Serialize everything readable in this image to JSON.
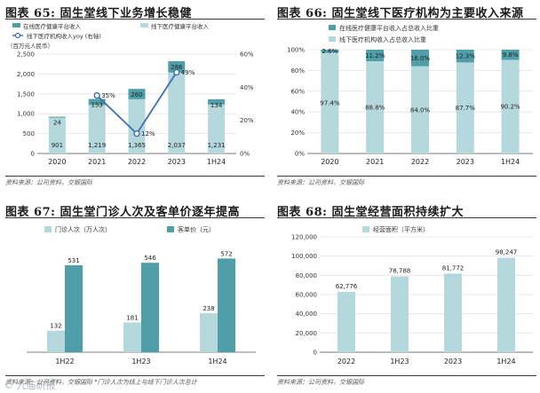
{
  "colors": {
    "light": "#b5d8dc",
    "dark": "#4f9ea8",
    "line": "#3d6fb6",
    "grid": "#e4e4e4",
    "axis": "#555555"
  },
  "watermark": "© 九庙研报",
  "panels": [
    {
      "title": "图表 65: 固生堂线下业务增长稳健",
      "source": "资料来源：公司资料，交银国际",
      "chart_data": {
        "type": "bar",
        "stacked": true,
        "categories": [
          "2020",
          "2021",
          "2022",
          "2023",
          "1H24"
        ],
        "unit_note": "（百万元人民币）",
        "series": [
          {
            "name": "在线医疗健康平台收入",
            "values": [
              24,
              153,
              260,
              286,
              134
            ]
          },
          {
            "name": "线下医疗健康平台收入",
            "values": [
              901,
              1219,
              1365,
              2037,
              1231
            ]
          }
        ],
        "line_series": {
          "name": "线下医疗机构收入yoy (右轴)",
          "values": [
            null,
            35,
            12,
            49,
            null
          ],
          "labels": [
            "",
            "35%",
            "12%",
            "49%",
            ""
          ]
        },
        "ylim": [
          0,
          2500
        ],
        "yticks": [
          "0",
          "500",
          "1,000",
          "1,500",
          "2,000",
          "2,500"
        ],
        "y2ticks": [
          "0%",
          "20%",
          "40%",
          "60%"
        ],
        "bottom_labels": [
          "901",
          "1,219",
          "1,365",
          "2,037",
          "1,231"
        ],
        "top_labels": [
          "24",
          "153",
          "260",
          "286",
          "134"
        ],
        "legend_position": "top-left"
      }
    },
    {
      "title": "图表 66: 固生堂线下医疗机构为主要收入来源",
      "source": "资料来源：公司资料，交银国际",
      "chart_data": {
        "type": "bar",
        "stacked": true,
        "percent": true,
        "categories": [
          "2020",
          "2021",
          "2022",
          "2023",
          "1H24"
        ],
        "series": [
          {
            "name": "在线医疗健康平台收入占总收入比重",
            "values": [
              2.6,
              11.2,
              16.0,
              12.3,
              9.8
            ]
          },
          {
            "name": "线下医疗机构收入占总收入比重",
            "values": [
              97.4,
              88.8,
              84.0,
              87.7,
              90.2
            ]
          }
        ],
        "top_labels": [
          "2.6%",
          "11.2%",
          "16.0%",
          "12.3%",
          "9.8%"
        ],
        "bottom_labels": [
          "97.4%",
          "88.8%",
          "84.0%",
          "87.7%",
          "90.2%"
        ],
        "ylim": [
          0,
          100
        ],
        "yticks": [
          "0%",
          "20%",
          "40%",
          "60%",
          "80%",
          "100%"
        ],
        "legend_position": "top-left"
      }
    },
    {
      "title": "图表 67: 固生堂门诊人次及客单价逐年提高",
      "source": "资料来源：公司资料，交银国际 *门诊人次为线上与线下门诊人次总计",
      "chart_data": {
        "type": "bar",
        "categories": [
          "1H22",
          "1H23",
          "1H24"
        ],
        "series": [
          {
            "name": "门诊人次（万人次）",
            "values": [
              132,
              181,
              238
            ]
          },
          {
            "name": "客单价（元）",
            "values": [
              531,
              546,
              572
            ]
          }
        ],
        "labels_a": [
          "132",
          "181",
          "238"
        ],
        "labels_b": [
          "531",
          "546",
          "572"
        ],
        "ylim": [
          0,
          650
        ],
        "legend_position": "top"
      }
    },
    {
      "title": "图表 68: 固生堂经营面积持续扩大",
      "source": "资料来源：公司资料，交银国际",
      "chart_data": {
        "type": "bar",
        "categories": [
          "2022",
          "1H23",
          "2023",
          "1H24"
        ],
        "series": [
          {
            "name": "经营面积（平方米）",
            "values": [
              62776,
              78788,
              81772,
              98247
            ]
          }
        ],
        "labels": [
          "62,776",
          "78,788",
          "81,772",
          "98,247"
        ],
        "ylim": [
          0,
          120000
        ],
        "yticks": [
          "0",
          "20,000",
          "40,000",
          "60,000",
          "80,000",
          "100,000",
          "120,000"
        ],
        "legend_position": "top"
      }
    }
  ]
}
